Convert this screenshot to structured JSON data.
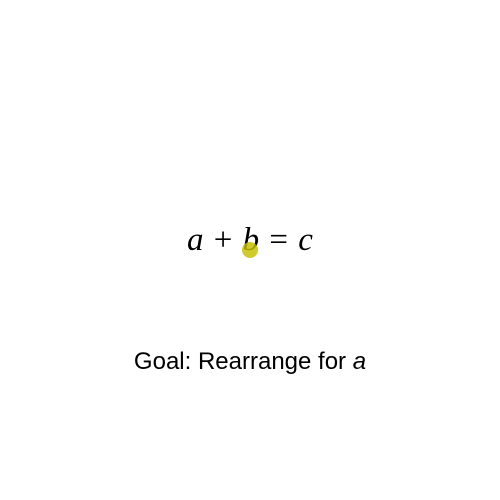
{
  "equation": {
    "a": "a",
    "plus": "+",
    "b": "b",
    "equals": "=",
    "c": "c"
  },
  "goal": {
    "prefix": "Goal: Rearrange for",
    "variable": "a"
  },
  "pointer": {
    "color": "#c4be00"
  }
}
